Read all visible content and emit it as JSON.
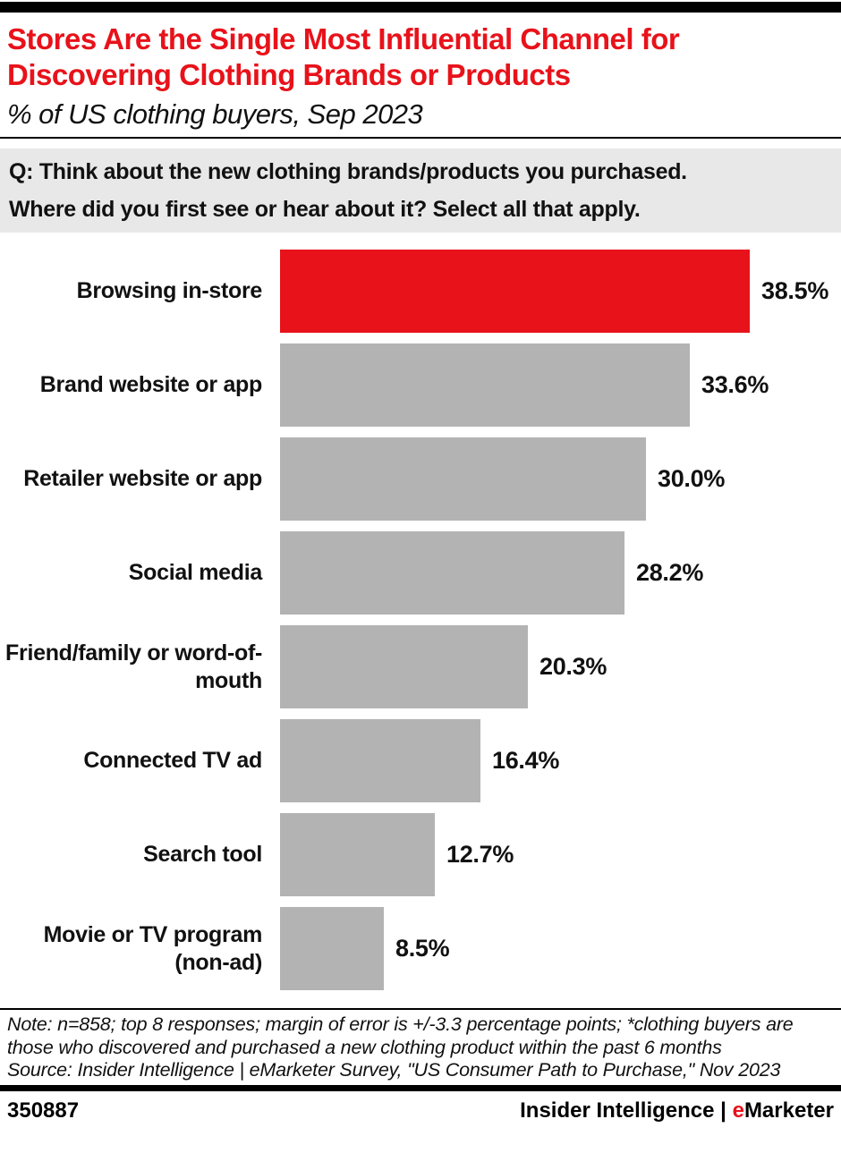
{
  "header": {
    "title": "Stores Are the Single Most Influential Channel for Discovering Clothing Brands or Products",
    "subtitle": "% of US clothing buyers, Sep 2023"
  },
  "question": {
    "line1": "Q: Think about the new clothing brands/products you purchased.",
    "line2": "Where did you first see or hear about it? Select all that apply."
  },
  "chart_data": {
    "type": "bar",
    "orientation": "horizontal",
    "title": "Stores Are the Single Most Influential Channel for Discovering Clothing Brands or Products",
    "subtitle": "% of US clothing buyers, Sep 2023",
    "categories": [
      "Browsing in-store",
      "Brand website or app",
      "Retailer website or app",
      "Social media",
      "Friend/family or word-of-mouth",
      "Connected TV ad",
      "Search tool",
      "Movie or TV program (non-ad)"
    ],
    "values": [
      38.5,
      33.6,
      30.0,
      28.2,
      20.3,
      16.4,
      12.7,
      8.5
    ],
    "value_labels": [
      "38.5%",
      "33.6%",
      "30.0%",
      "28.2%",
      "20.3%",
      "16.4%",
      "12.7%",
      "8.5%"
    ],
    "xlim": [
      0,
      40
    ],
    "grid": false,
    "legend": false,
    "highlight_index": 0,
    "highlight_color": "#e8121a",
    "bar_color": "#b3b3b3"
  },
  "note": {
    "note_text": "Note: n=858; top 8 responses; margin of error is +/-3.3 percentage points; *clothing buyers are those who discovered and purchased a new clothing product within the past 6 months",
    "source_text": "Source: Insider Intelligence | eMarketer Survey, \"US Consumer Path to Purchase,\" Nov 2023"
  },
  "footer": {
    "chart_id": "350887",
    "brand_left": "Insider Intelligence",
    "separator": " | ",
    "brand_right_prefix": "e",
    "brand_right_rest": "Marketer"
  },
  "colors": {
    "accent_red": "#e8121a",
    "bar_gray": "#b3b3b3",
    "band_gray": "#e8e8e8",
    "bar_black": "#000000"
  }
}
